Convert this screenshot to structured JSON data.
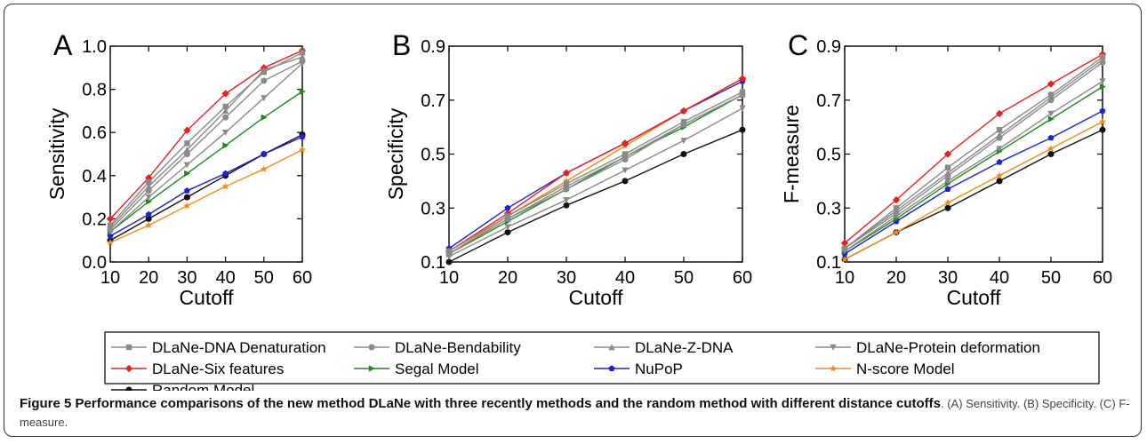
{
  "figure": {
    "caption_bold": "Figure 5 Performance comparisons of the new method DLaNe with three recently methods and the random method with different distance cutoffs",
    "caption_rest": ". (A) Sensitivity. (B) Specificity. (C) F-measure."
  },
  "legend": [
    {
      "name": "DLaNe-DNA Denaturation",
      "color": "#8a8a8a",
      "marker": "square"
    },
    {
      "name": "DLaNe-Bendability",
      "color": "#8a8a8a",
      "marker": "circle"
    },
    {
      "name": "DLaNe-Z-DNA",
      "color": "#8a8a8a",
      "marker": "triangle-up"
    },
    {
      "name": "DLaNe-Protein  deformation",
      "color": "#8a8a8a",
      "marker": "triangle-down"
    },
    {
      "name": "DLaNe-Six features",
      "color": "#e8211f",
      "marker": "diamond"
    },
    {
      "name": "Segal Model",
      "color": "#1f8a1f",
      "marker": "triangle-right"
    },
    {
      "name": "NuPoP",
      "color": "#1f1fd6",
      "marker": "pentagon"
    },
    {
      "name": "N-score Model",
      "color": "#f28c1c",
      "marker": "star"
    },
    {
      "name": "Random Model",
      "color": "#111111",
      "marker": "circle"
    }
  ],
  "chart_data": [
    {
      "type": "line",
      "panel_label": "A",
      "xlabel": "Cutoff",
      "ylabel": "Sensitivity",
      "x": [
        10,
        20,
        30,
        40,
        50,
        60
      ],
      "xticks": [
        "10",
        "20",
        "30",
        "40",
        "50",
        "60"
      ],
      "xlim": [
        10,
        60
      ],
      "ylim": [
        0.0,
        1.0
      ],
      "yticks": [
        "0.0",
        "0.2",
        "0.4",
        "0.6",
        "0.8",
        "1.0"
      ],
      "series": [
        {
          "name": "DLaNe-DNA Denaturation",
          "values": [
            0.17,
            0.37,
            0.55,
            0.72,
            0.88,
            0.97
          ]
        },
        {
          "name": "DLaNe-Bendability",
          "values": [
            0.15,
            0.33,
            0.5,
            0.67,
            0.84,
            0.93
          ]
        },
        {
          "name": "DLaNe-Z-DNA",
          "values": [
            0.16,
            0.35,
            0.52,
            0.7,
            0.89,
            0.95
          ]
        },
        {
          "name": "DLaNe-Protein  deformation",
          "values": [
            0.14,
            0.3,
            0.45,
            0.6,
            0.76,
            0.92
          ]
        },
        {
          "name": "DLaNe-Six features",
          "values": [
            0.2,
            0.39,
            0.61,
            0.78,
            0.9,
            0.98
          ]
        },
        {
          "name": "Segal Model",
          "values": [
            0.14,
            0.28,
            0.41,
            0.54,
            0.67,
            0.79
          ]
        },
        {
          "name": "NuPoP",
          "values": [
            0.12,
            0.22,
            0.33,
            0.41,
            0.5,
            0.58
          ]
        },
        {
          "name": "N-score Model",
          "values": [
            0.09,
            0.17,
            0.26,
            0.35,
            0.43,
            0.52
          ]
        },
        {
          "name": "Random Model",
          "values": [
            0.1,
            0.2,
            0.3,
            0.4,
            0.5,
            0.59
          ]
        }
      ]
    },
    {
      "type": "line",
      "panel_label": "B",
      "xlabel": "Cutoff",
      "ylabel": "Specificity",
      "x": [
        10,
        20,
        30,
        40,
        50,
        60
      ],
      "xticks": [
        "10",
        "20",
        "30",
        "40",
        "50",
        "60"
      ],
      "xlim": [
        10,
        60
      ],
      "ylim": [
        0.1,
        0.9
      ],
      "yticks": [
        "0.1",
        "0.3",
        "0.5",
        "0.7",
        "0.9"
      ],
      "series": [
        {
          "name": "DLaNe-DNA Denaturation",
          "values": [
            0.14,
            0.27,
            0.39,
            0.5,
            0.62,
            0.73
          ]
        },
        {
          "name": "DLaNe-Bendability",
          "values": [
            0.13,
            0.26,
            0.37,
            0.48,
            0.61,
            0.72
          ]
        },
        {
          "name": "DLaNe-Z-DNA",
          "values": [
            0.13,
            0.26,
            0.38,
            0.49,
            0.61,
            0.72
          ]
        },
        {
          "name": "DLaNe-Protein  deformation",
          "values": [
            0.12,
            0.23,
            0.33,
            0.44,
            0.55,
            0.67
          ]
        },
        {
          "name": "DLaNe-Six features",
          "values": [
            0.14,
            0.28,
            0.43,
            0.54,
            0.66,
            0.78
          ]
        },
        {
          "name": "Segal Model",
          "values": [
            0.13,
            0.25,
            0.37,
            0.49,
            0.6,
            0.72
          ]
        },
        {
          "name": "NuPoP",
          "values": [
            0.15,
            0.3,
            0.43,
            0.54,
            0.66,
            0.77
          ]
        },
        {
          "name": "N-score Model",
          "values": [
            0.13,
            0.27,
            0.4,
            0.53,
            0.66,
            0.78
          ]
        },
        {
          "name": "Random Model",
          "values": [
            0.1,
            0.21,
            0.31,
            0.4,
            0.5,
            0.59
          ]
        }
      ]
    },
    {
      "type": "line",
      "panel_label": "C",
      "xlabel": "Cutoff",
      "ylabel": "F-measure",
      "x": [
        10,
        20,
        30,
        40,
        50,
        60
      ],
      "xticks": [
        "10",
        "20",
        "30",
        "40",
        "50",
        "60"
      ],
      "xlim": [
        10,
        60
      ],
      "ylim": [
        0.1,
        0.9
      ],
      "yticks": [
        "0.1",
        "0.3",
        "0.5",
        "0.7",
        "0.9"
      ],
      "series": [
        {
          "name": "DLaNe-DNA Denaturation",
          "values": [
            0.15,
            0.3,
            0.45,
            0.59,
            0.72,
            0.86
          ]
        },
        {
          "name": "DLaNe-Bendability",
          "values": [
            0.15,
            0.28,
            0.42,
            0.56,
            0.7,
            0.84
          ]
        },
        {
          "name": "DLaNe-Z-DNA",
          "values": [
            0.15,
            0.29,
            0.43,
            0.57,
            0.71,
            0.85
          ]
        },
        {
          "name": "DLaNe-Protein  deformation",
          "values": [
            0.14,
            0.27,
            0.4,
            0.52,
            0.65,
            0.77
          ]
        },
        {
          "name": "DLaNe-Six features",
          "values": [
            0.17,
            0.33,
            0.5,
            0.65,
            0.76,
            0.87
          ]
        },
        {
          "name": "Segal Model",
          "values": [
            0.14,
            0.26,
            0.39,
            0.51,
            0.63,
            0.75
          ]
        },
        {
          "name": "NuPoP",
          "values": [
            0.13,
            0.25,
            0.37,
            0.47,
            0.56,
            0.66
          ]
        },
        {
          "name": "N-score Model",
          "values": [
            0.11,
            0.21,
            0.32,
            0.42,
            0.52,
            0.62
          ]
        },
        {
          "name": "Random Model",
          "values": [
            0.11,
            0.21,
            0.3,
            0.4,
            0.5,
            0.59
          ]
        }
      ]
    }
  ]
}
